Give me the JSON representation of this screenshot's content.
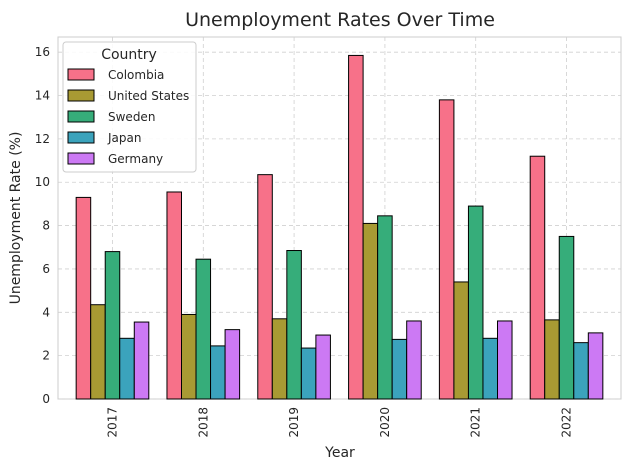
{
  "chart_data": {
    "type": "bar",
    "title": "Unemployment Rates Over Time",
    "xlabel": "Year",
    "ylabel": "Unemployment Rate (%)",
    "categories": [
      "2017",
      "2018",
      "2019",
      "2020",
      "2021",
      "2022"
    ],
    "ylim": [
      0,
      16.7
    ],
    "yticks": [
      0,
      2,
      4,
      6,
      8,
      10,
      12,
      14,
      16
    ],
    "grid": true,
    "legend": {
      "title": "Country",
      "placement": "top-left"
    },
    "series": [
      {
        "name": "Colombia",
        "color": "#f77189",
        "values": [
          9.3,
          9.55,
          10.35,
          15.85,
          13.8,
          11.2
        ]
      },
      {
        "name": "United States",
        "color": "#a89a33",
        "values": [
          4.35,
          3.9,
          3.7,
          8.1,
          5.4,
          3.65
        ]
      },
      {
        "name": "Sweden",
        "color": "#36ad7a",
        "values": [
          6.8,
          6.45,
          6.85,
          8.45,
          8.9,
          7.5
        ]
      },
      {
        "name": "Japan",
        "color": "#3ba3bc",
        "values": [
          2.8,
          2.45,
          2.35,
          2.75,
          2.8,
          2.6
        ]
      },
      {
        "name": "Germany",
        "color": "#cc79f4",
        "values": [
          3.55,
          3.2,
          2.95,
          3.6,
          3.6,
          3.05
        ]
      }
    ]
  }
}
